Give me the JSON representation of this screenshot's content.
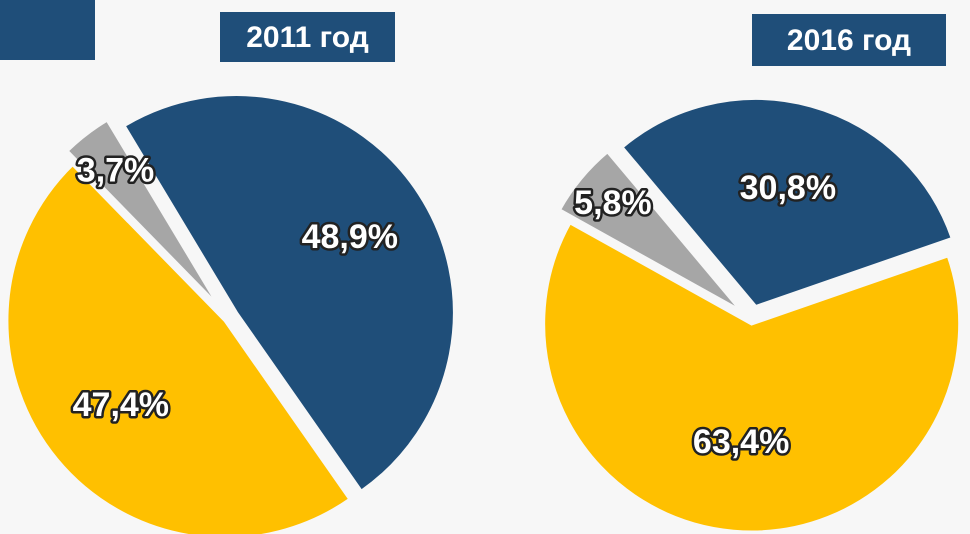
{
  "chart_data": [
    {
      "type": "pie",
      "title": "2011 год",
      "values": [
        48.9,
        47.4,
        3.7
      ],
      "value_labels": [
        "48,9%",
        "47,4%",
        "3,7%"
      ],
      "colors": [
        "#1f4e79",
        "#ffc000",
        "#a6a6a6"
      ]
    },
    {
      "type": "pie",
      "title": "2016 год",
      "values": [
        30.8,
        63.4,
        5.8
      ],
      "value_labels": [
        "30,8%",
        "63,4%",
        "5,8%"
      ],
      "colors": [
        "#1f4e79",
        "#ffc000",
        "#a6a6a6"
      ]
    }
  ]
}
